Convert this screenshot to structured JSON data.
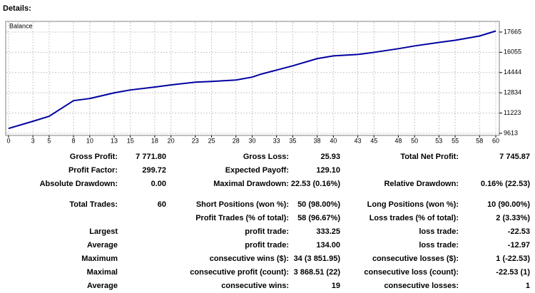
{
  "header": {
    "title": "Details:"
  },
  "chart_data": {
    "type": "line",
    "x": [
      0,
      3,
      5,
      8,
      10,
      13,
      15,
      18,
      20,
      23,
      25,
      28,
      30,
      31,
      33,
      35,
      38,
      40,
      43,
      45,
      48,
      50,
      53,
      55,
      58,
      60
    ],
    "series": [
      {
        "name": "Balance",
        "color": "#0000a0",
        "values": [
          10000,
          10570,
          10970,
          12210,
          12380,
          12830,
          13060,
          13290,
          13460,
          13680,
          13740,
          13850,
          14080,
          14300,
          14640,
          14980,
          15550,
          15770,
          15880,
          16050,
          16340,
          16560,
          16840,
          17010,
          17350,
          17746
        ]
      }
    ],
    "xlim": [
      0,
      60
    ],
    "xticks": [
      0,
      3,
      5,
      8,
      10,
      13,
      15,
      18,
      20,
      23,
      25,
      28,
      30,
      33,
      35,
      38,
      40,
      43,
      45,
      48,
      50,
      53,
      55,
      58,
      60
    ],
    "ylim": [
      9443,
      18512
    ],
    "yticks": [
      9613,
      11223,
      12834,
      14444,
      16055,
      17665
    ],
    "grid": true
  },
  "table": {
    "rows": [
      [
        "Gross Profit:",
        "7 771.80",
        "Gross Loss:",
        "25.93",
        "Total Net Profit:",
        "7 745.87"
      ],
      [
        "Profit Factor:",
        "299.72",
        "Expected Payoff:",
        "129.10",
        null,
        null
      ],
      [
        "Absolute Drawdown:",
        "0.00",
        "Maximal Drawdown:",
        "22.53 (0.16%)",
        "Relative Drawdown:",
        "0.16% (22.53)"
      ],
      [
        "Total Trades:",
        "60",
        "Short Positions (won %):",
        "50 (98.00%)",
        "Long Positions (won %):",
        "10 (90.00%)"
      ],
      [
        null,
        null,
        "Profit Trades (% of total):",
        "58 (96.67%)",
        "Loss trades (% of total):",
        "2 (3.33%)"
      ],
      [
        "Largest",
        null,
        "profit trade:",
        "333.25",
        "loss trade:",
        "-22.53"
      ],
      [
        "Average",
        null,
        "profit trade:",
        "134.00",
        "loss trade:",
        "-12.97"
      ],
      [
        "Maximum",
        null,
        "consecutive wins ($):",
        "34 (3 851.95)",
        "consecutive losses ($):",
        "1 (-22.53)"
      ],
      [
        "Maximal",
        null,
        "consecutive profit (count):",
        "3 868.51 (22)",
        "consecutive loss (count):",
        "-22.53 (1)"
      ],
      [
        "Average",
        null,
        "consecutive wins:",
        "19",
        "consecutive losses:",
        "1"
      ]
    ]
  }
}
